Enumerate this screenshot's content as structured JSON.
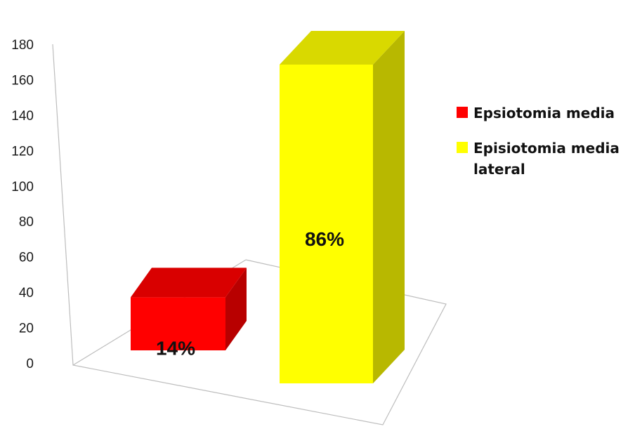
{
  "chart_data": {
    "type": "bar",
    "variant": "3d-column",
    "categories": [
      "Epsiotomia media",
      "Episiotomia media lateral"
    ],
    "values": [
      30,
      180
    ],
    "data_labels": [
      "14%",
      "86%"
    ],
    "colors": [
      "#ff0000",
      "#ffff00"
    ],
    "ylim": [
      0,
      180
    ],
    "yticks": [
      0,
      20,
      40,
      60,
      80,
      100,
      120,
      140,
      160,
      180
    ],
    "legend": {
      "position": "right",
      "entries": [
        {
          "label": "Epsiotomia media",
          "color": "#ff0000"
        },
        {
          "label": "Episiotomia media lateral",
          "color": "#ffff00"
        }
      ]
    },
    "grid": false
  }
}
